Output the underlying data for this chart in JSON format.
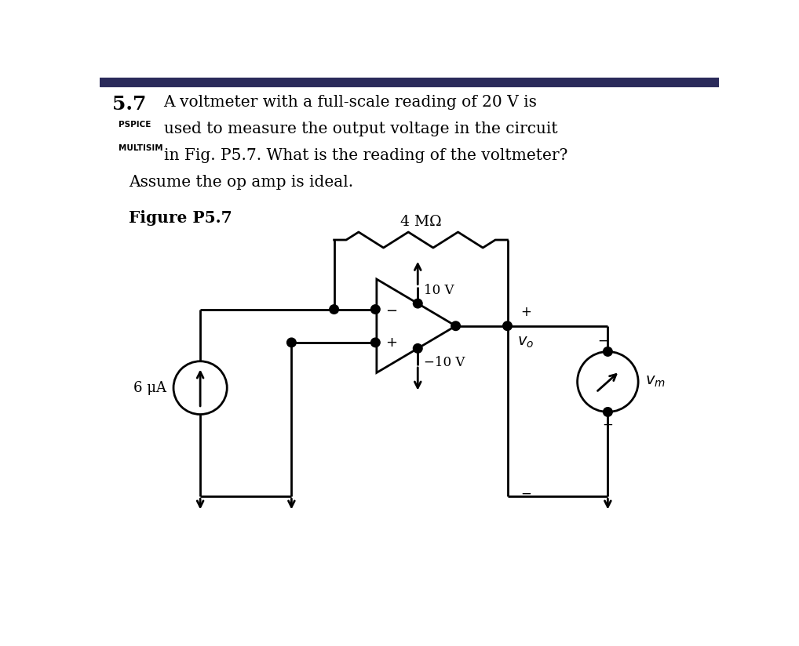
{
  "bg_color": "#ffffff",
  "line_color": "#000000",
  "title_num": "5.7",
  "pspice_label": "PSPICE",
  "multisim_label": "MULTISIM",
  "problem_line1": "A voltmeter with a full-scale reading of 20 V is",
  "problem_line2": "used to measure the output voltage in the circuit",
  "problem_line3": "in Fig. P5.7. What is the reading of the voltmeter?",
  "problem_line4": "Assume the op amp is ideal.",
  "figure_label": "Figure P5.7",
  "resistor_label": "4 MΩ",
  "vplus_label": "10 V",
  "vminus_label": "−10 V",
  "current_label": "6 μA",
  "vo_label": "$v_o$",
  "vm_label": "$v_m$",
  "plus_sign": "+",
  "minus_sign": "−"
}
